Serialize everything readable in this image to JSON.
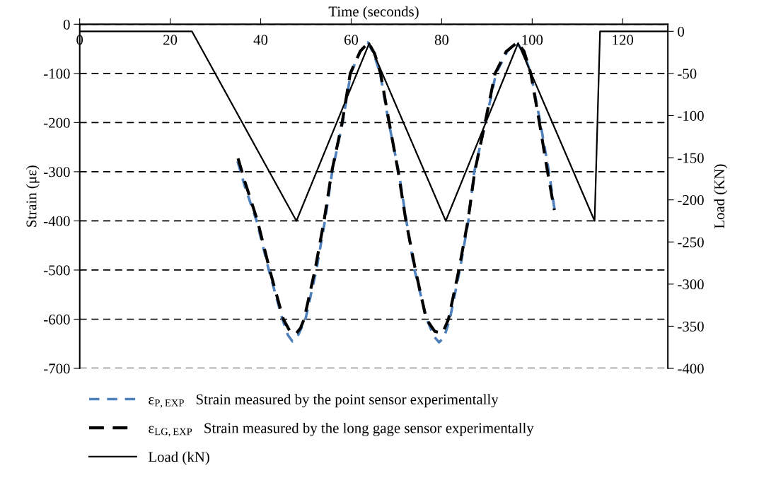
{
  "chart_data": {
    "type": "line",
    "xlabel": "Time (seconds)",
    "ylabel": "Strain (με)",
    "y2label": "Load (KN)",
    "xlim": [
      0,
      130
    ],
    "xticks": [
      0,
      20,
      40,
      60,
      80,
      100,
      120
    ],
    "ylim": [
      -700,
      0
    ],
    "yticks": [
      -700,
      -600,
      -500,
      -400,
      -300,
      -200,
      -100,
      0
    ],
    "y2lim": [
      -400,
      8.4
    ],
    "y2ticks": [
      -400,
      -350,
      -300,
      -250,
      -200,
      -150,
      -100,
      -50,
      0
    ],
    "grid": "y",
    "legend": "bottom",
    "marker": "none",
    "series": [
      {
        "name": "ε$_{P,EXP}$   Strain measured by the point sensor experimentally",
        "color": "#4f81bd",
        "line_style": "dashed",
        "x": [
          34.9,
          36.5,
          39.1,
          41.8,
          44.8,
          46,
          47,
          48,
          49.9,
          52.3,
          54.2,
          55.8,
          58.1,
          59.9,
          62,
          63.7,
          65,
          66.4,
          68.3,
          70.5,
          72.2,
          74,
          76.7,
          78.3,
          79.4,
          80.5,
          81.8,
          84,
          85.9,
          87.2,
          89.7,
          92,
          94.5,
          96.5,
          98,
          99.7,
          101.8,
          103.7,
          105
        ],
        "values": [
          -279,
          -330,
          -400,
          -500,
          -600,
          -632,
          -645,
          -638,
          -600,
          -500,
          -400,
          -300,
          -200,
          -100,
          -55,
          -37,
          -60,
          -100,
          -200,
          -300,
          -400,
          -500,
          -600,
          -635,
          -647,
          -638,
          -600,
          -500,
          -400,
          -300,
          -200,
          -100,
          -55,
          -37,
          -55,
          -100,
          -200,
          -300,
          -380
        ]
      },
      {
        "name": "ε$_{LG,EXP}$   Strain measured by the long gage sensor experimentally",
        "color": "#000000",
        "line_style": "dashed",
        "x": [
          35,
          36.5,
          39.3,
          42,
          45,
          46.5,
          47.8,
          48.8,
          49.6,
          52,
          54,
          55.7,
          58,
          59.8,
          62,
          63.8,
          65.2,
          66.5,
          68.4,
          70.4,
          72.1,
          74.2,
          76.6,
          78.5,
          80.2,
          81.5,
          83.8,
          85.8,
          87.3,
          89.6,
          91.8,
          94.3,
          96.7,
          98.2,
          99.7,
          101.6,
          103.4,
          104.9
        ],
        "values": [
          -273,
          -320,
          -400,
          -500,
          -600,
          -625,
          -630,
          -618,
          -600,
          -500,
          -400,
          -300,
          -200,
          -100,
          -55,
          -37,
          -60,
          -100,
          -200,
          -300,
          -400,
          -500,
          -600,
          -625,
          -628,
          -600,
          -500,
          -400,
          -300,
          -200,
          -100,
          -55,
          -37,
          -55,
          -100,
          -200,
          -300,
          -378
        ]
      },
      {
        "name": "Load (kN)",
        "color": "#000000",
        "line_style": "solid",
        "axis": "y2",
        "x": [
          0,
          24.8,
          47.9,
          64,
          80.9,
          96.9,
          113.8,
          115,
          130
        ],
        "values": [
          0,
          0,
          -225,
          -14,
          -225,
          -14,
          -225,
          0,
          0
        ]
      }
    ]
  }
}
